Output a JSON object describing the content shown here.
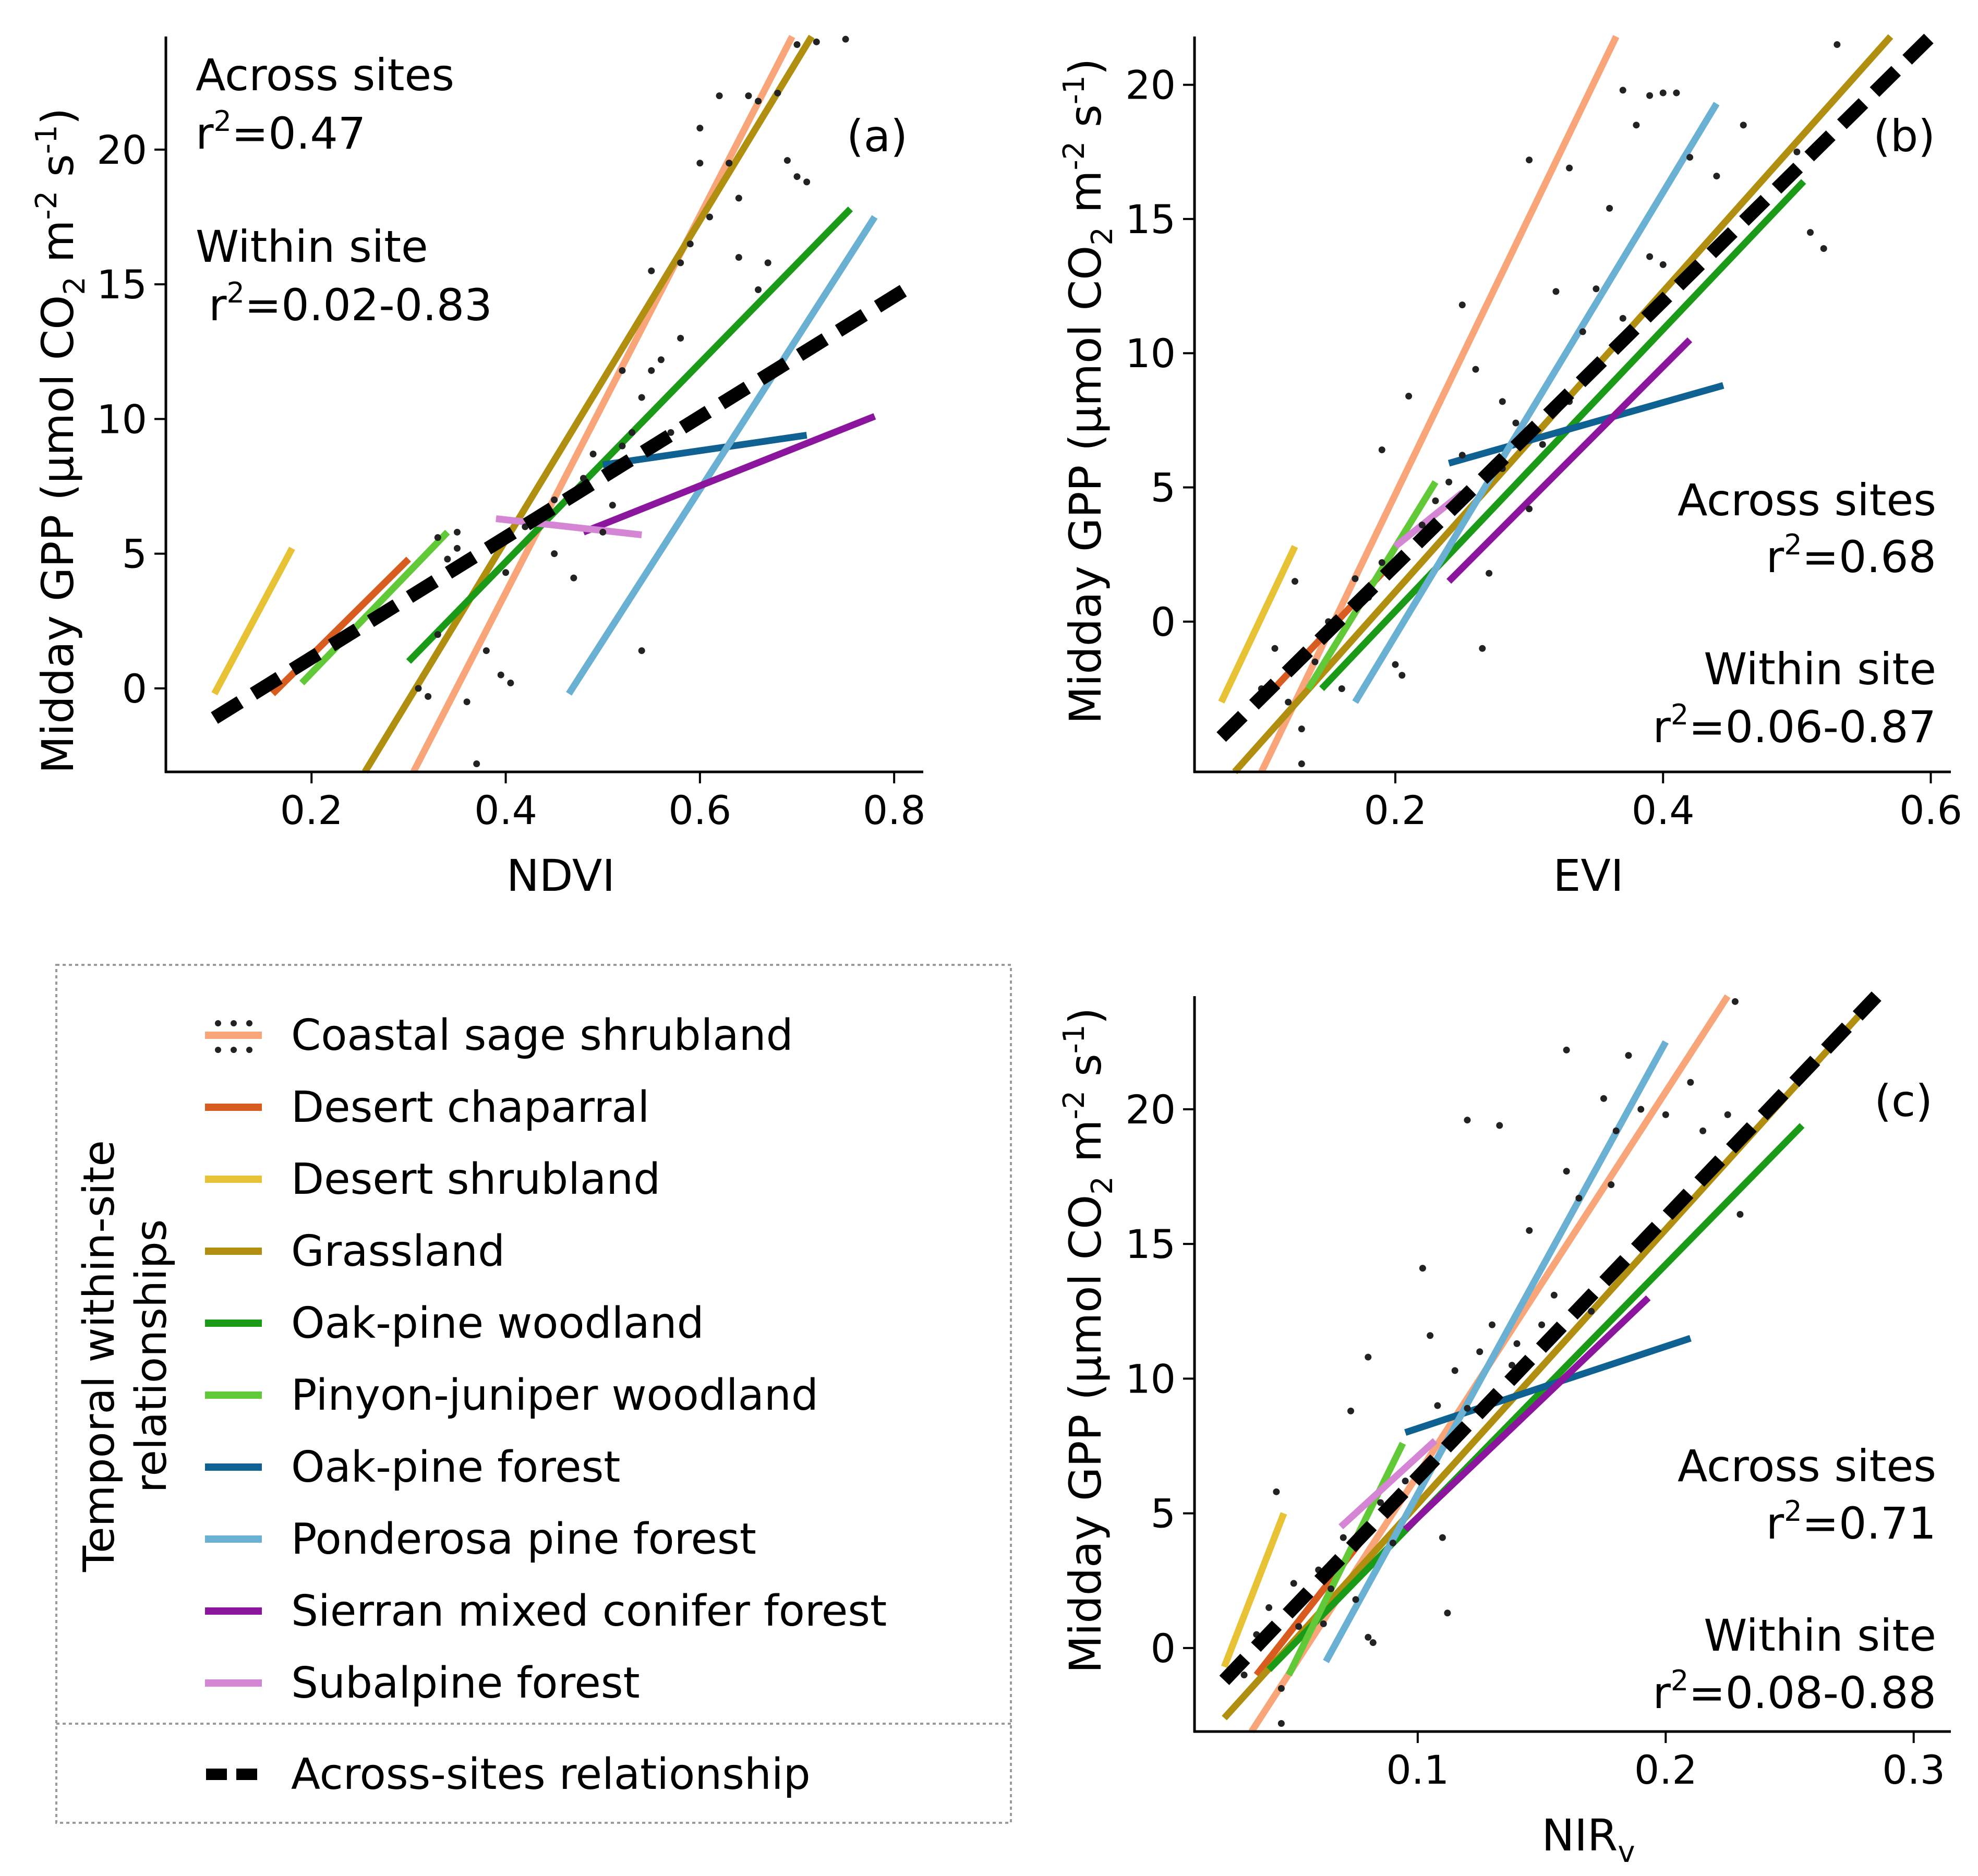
{
  "colors": {
    "background": "#ffffff",
    "points": "#222222",
    "across_sites_line": "#000000",
    "legend_border": "#9a9a9a"
  },
  "chart_data": [
    {
      "id": "a",
      "type": "scatter",
      "panel_label": "(a)",
      "xlabel": "NDVI",
      "ylabel_main": "Midday GPP (µmol CO",
      "ylabel_sub": "2",
      "ylabel_mid": " m",
      "ylabel_sup1": "-2",
      "ylabel_mid2": " s",
      "ylabel_sup2": "-1",
      "ylabel_end": ")",
      "xlim": [
        0.05,
        0.83
      ],
      "ylim": [
        -3.1,
        24.2
      ],
      "xticks": [
        0.2,
        0.4,
        0.6,
        0.8
      ],
      "xtick_labels": [
        "0.2",
        "0.4",
        "0.6",
        "0.8"
      ],
      "yticks": [
        0,
        5,
        10,
        15,
        20
      ],
      "ytick_labels": [
        "0",
        "5",
        "10",
        "15",
        "20"
      ],
      "annotation": {
        "across_title": "Across sites",
        "across_r2_prefix": "r",
        "across_r2_exp": "2",
        "across_r2_value": "=0.47",
        "within_title": "Within site",
        "within_r2_prefix": "r",
        "within_r2_exp": "2",
        "within_r2_value": "=0.02-0.83",
        "placement": "top-left"
      },
      "site_lines": [
        {
          "site": "Coastal sage shrubland",
          "x": [
            0.305,
            0.695
          ],
          "y": [
            -3.1,
            24.2
          ]
        },
        {
          "site": "Desert chaparral",
          "x": [
            0.16,
            0.3
          ],
          "y": [
            -0.2,
            4.8
          ]
        },
        {
          "site": "Desert shrubland",
          "x": [
            0.1,
            0.18
          ],
          "y": [
            -0.2,
            5.2
          ]
        },
        {
          "site": "Grassland",
          "x": [
            0.255,
            0.715
          ],
          "y": [
            -3.1,
            24.2
          ]
        },
        {
          "site": "Oak-pine woodland",
          "x": [
            0.3,
            0.755
          ],
          "y": [
            1.0,
            17.8
          ]
        },
        {
          "site": "Pinyon-juniper woodland",
          "x": [
            0.19,
            0.34
          ],
          "y": [
            0.2,
            5.8
          ]
        },
        {
          "site": "Oak-pine forest",
          "x": [
            0.5,
            0.71
          ],
          "y": [
            8.3,
            9.4
          ]
        },
        {
          "site": "Ponderosa pine forest",
          "x": [
            0.465,
            0.78
          ],
          "y": [
            -0.2,
            17.5
          ]
        },
        {
          "site": "Sierran mixed conifer forest",
          "x": [
            0.48,
            0.78
          ],
          "y": [
            5.8,
            10.1
          ]
        },
        {
          "site": "Subalpine forest",
          "x": [
            0.39,
            0.54
          ],
          "y": [
            6.3,
            5.7
          ]
        }
      ],
      "across_line": {
        "x": [
          0.1,
          0.82
        ],
        "y": [
          -1.1,
          15.0
        ]
      },
      "points": [
        [
          0.31,
          0.0
        ],
        [
          0.32,
          -0.3
        ],
        [
          0.33,
          2.0
        ],
        [
          0.34,
          4.8
        ],
        [
          0.35,
          5.2
        ],
        [
          0.36,
          -0.5
        ],
        [
          0.38,
          1.4
        ],
        [
          0.395,
          0.5
        ],
        [
          0.405,
          0.2
        ],
        [
          0.37,
          -2.8
        ],
        [
          0.33,
          5.6
        ],
        [
          0.35,
          5.8
        ],
        [
          0.4,
          4.3
        ],
        [
          0.42,
          6.0
        ],
        [
          0.44,
          6.5
        ],
        [
          0.45,
          5.0
        ],
        [
          0.45,
          7.0
        ],
        [
          0.47,
          4.1
        ],
        [
          0.48,
          7.8
        ],
        [
          0.49,
          8.7
        ],
        [
          0.5,
          5.8
        ],
        [
          0.51,
          6.8
        ],
        [
          0.52,
          9.0
        ],
        [
          0.53,
          9.5
        ],
        [
          0.52,
          11.8
        ],
        [
          0.54,
          1.4
        ],
        [
          0.54,
          10.8
        ],
        [
          0.55,
          11.8
        ],
        [
          0.55,
          15.5
        ],
        [
          0.56,
          12.2
        ],
        [
          0.57,
          9.5
        ],
        [
          0.58,
          15.8
        ],
        [
          0.58,
          13.0
        ],
        [
          0.59,
          16.5
        ],
        [
          0.6,
          19.5
        ],
        [
          0.6,
          20.8
        ],
        [
          0.61,
          17.5
        ],
        [
          0.62,
          22.0
        ],
        [
          0.63,
          19.5
        ],
        [
          0.63,
          19.5
        ],
        [
          0.64,
          18.2
        ],
        [
          0.64,
          16.0
        ],
        [
          0.65,
          22.0
        ],
        [
          0.66,
          21.8
        ],
        [
          0.66,
          14.8
        ],
        [
          0.67,
          15.8
        ],
        [
          0.68,
          22.1
        ],
        [
          0.69,
          19.6
        ],
        [
          0.7,
          19.0
        ],
        [
          0.71,
          18.8
        ],
        [
          0.7,
          23.9
        ],
        [
          0.72,
          24.0
        ],
        [
          0.75,
          24.1
        ]
      ]
    },
    {
      "id": "b",
      "type": "scatter",
      "panel_label": "(b)",
      "xlabel": "EVI",
      "ylabel_main": "Midday GPP (µmol CO",
      "ylabel_sub": "2",
      "ylabel_mid": " m",
      "ylabel_sup1": "-2",
      "ylabel_mid2": " s",
      "ylabel_sup2": "-1",
      "ylabel_end": ")",
      "xlim": [
        0.05,
        0.615
      ],
      "ylim": [
        -5.6,
        21.8
      ],
      "xticks": [
        0.2,
        0.4,
        0.6
      ],
      "xtick_labels": [
        "0.2",
        "0.4",
        "0.6"
      ],
      "yticks": [
        0,
        5,
        10,
        15,
        20
      ],
      "ytick_labels": [
        "0",
        "5",
        "10",
        "15",
        "20"
      ],
      "annotation": {
        "across_title": "Across sites",
        "across_r2_prefix": "r",
        "across_r2_exp": "2",
        "across_r2_value": "=0.68",
        "within_title": "Within site",
        "within_r2_prefix": "r",
        "within_r2_exp": "2",
        "within_r2_value": "=0.06-0.87",
        "placement": "bottom-right"
      },
      "site_lines": [
        {
          "site": "Coastal sage shrubland",
          "x": [
            0.1,
            0.365
          ],
          "y": [
            -5.6,
            21.8
          ]
        },
        {
          "site": "Desert chaparral",
          "x": [
            0.1,
            0.19
          ],
          "y": [
            -3.0,
            1.8
          ]
        },
        {
          "site": "Desert shrubland",
          "x": [
            0.07,
            0.125
          ],
          "y": [
            -3.0,
            2.8
          ]
        },
        {
          "site": "Grassland",
          "x": [
            0.08,
            0.57
          ],
          "y": [
            -5.6,
            21.8
          ]
        },
        {
          "site": "Oak-pine woodland",
          "x": [
            0.145,
            0.505
          ],
          "y": [
            -2.5,
            16.4
          ]
        },
        {
          "site": "Pinyon-juniper woodland",
          "x": [
            0.135,
            0.23
          ],
          "y": [
            -2.5,
            5.2
          ]
        },
        {
          "site": "Oak-pine forest",
          "x": [
            0.24,
            0.445
          ],
          "y": [
            5.9,
            8.8
          ]
        },
        {
          "site": "Ponderosa pine forest",
          "x": [
            0.17,
            0.44
          ],
          "y": [
            -3.0,
            19.3
          ]
        },
        {
          "site": "Sierran mixed conifer forest",
          "x": [
            0.24,
            0.42
          ],
          "y": [
            1.5,
            10.5
          ]
        },
        {
          "site": "Subalpine forest",
          "x": [
            0.2,
            0.25
          ],
          "y": [
            2.8,
            4.8
          ]
        }
      ],
      "across_line": {
        "x": [
          0.07,
          0.6
        ],
        "y": [
          -4.3,
          21.8
        ]
      },
      "points": [
        [
          0.1,
          -2.5
        ],
        [
          0.11,
          -1.0
        ],
        [
          0.12,
          -3.0
        ],
        [
          0.125,
          1.5
        ],
        [
          0.13,
          -4.0
        ],
        [
          0.13,
          -5.3
        ],
        [
          0.14,
          -1.5
        ],
        [
          0.15,
          0.0
        ],
        [
          0.16,
          -2.5
        ],
        [
          0.17,
          1.6
        ],
        [
          0.18,
          0.9
        ],
        [
          0.19,
          2.2
        ],
        [
          0.19,
          6.4
        ],
        [
          0.2,
          -1.6
        ],
        [
          0.205,
          -2.0
        ],
        [
          0.21,
          8.4
        ],
        [
          0.22,
          3.6
        ],
        [
          0.23,
          4.5
        ],
        [
          0.24,
          5.2
        ],
        [
          0.25,
          6.2
        ],
        [
          0.25,
          11.8
        ],
        [
          0.26,
          9.4
        ],
        [
          0.265,
          -1.0
        ],
        [
          0.27,
          1.8
        ],
        [
          0.28,
          8.2
        ],
        [
          0.28,
          5.7
        ],
        [
          0.29,
          7.4
        ],
        [
          0.3,
          4.2
        ],
        [
          0.3,
          17.2
        ],
        [
          0.31,
          6.6
        ],
        [
          0.32,
          12.3
        ],
        [
          0.33,
          16.9
        ],
        [
          0.33,
          8.2
        ],
        [
          0.34,
          10.8
        ],
        [
          0.35,
          12.4
        ],
        [
          0.36,
          15.4
        ],
        [
          0.37,
          19.8
        ],
        [
          0.37,
          11.3
        ],
        [
          0.38,
          18.5
        ],
        [
          0.39,
          19.6
        ],
        [
          0.4,
          19.7
        ],
        [
          0.39,
          13.6
        ],
        [
          0.4,
          13.3
        ],
        [
          0.41,
          19.7
        ],
        [
          0.42,
          17.3
        ],
        [
          0.44,
          16.6
        ],
        [
          0.46,
          18.5
        ],
        [
          0.5,
          17.5
        ],
        [
          0.51,
          14.5
        ],
        [
          0.52,
          13.9
        ],
        [
          0.53,
          21.5
        ]
      ]
    },
    {
      "id": "c",
      "type": "scatter",
      "panel_label": "(c)",
      "xlabel_main": "NIR",
      "xlabel_sub": "v",
      "ylabel_main": "Midday GPP (µmol CO",
      "ylabel_sub": "2",
      "ylabel_mid": " m",
      "ylabel_sup1": "-2",
      "ylabel_mid2": " s",
      "ylabel_sup2": "-1",
      "ylabel_end": ")",
      "xlim": [
        0.01,
        0.315
      ],
      "ylim": [
        -3.1,
        24.2
      ],
      "xticks": [
        0.1,
        0.2,
        0.3
      ],
      "xtick_labels": [
        "0.1",
        "0.2",
        "0.3"
      ],
      "yticks": [
        0,
        5,
        10,
        15,
        20
      ],
      "ytick_labels": [
        "0",
        "5",
        "10",
        "15",
        "20"
      ],
      "annotation": {
        "across_title": "Across sites",
        "across_r2_prefix": "r",
        "across_r2_exp": "2",
        "across_r2_value": "=0.71",
        "within_title": "Within site",
        "within_r2_prefix": "r",
        "within_r2_exp": "2",
        "within_r2_value": "=0.08-0.88",
        "placement": "bottom-right"
      },
      "site_lines": [
        {
          "site": "Coastal sage shrubland",
          "x": [
            0.033,
            0.225
          ],
          "y": [
            -3.1,
            24.2
          ]
        },
        {
          "site": "Desert chaparral",
          "x": [
            0.035,
            0.08
          ],
          "y": [
            -1.0,
            4.3
          ]
        },
        {
          "site": "Desert shrubland",
          "x": [
            0.022,
            0.046
          ],
          "y": [
            -0.7,
            5.0
          ]
        },
        {
          "site": "Grassland",
          "x": [
            0.022,
            0.285
          ],
          "y": [
            -2.6,
            24.2
          ]
        },
        {
          "site": "Oak-pine woodland",
          "x": [
            0.04,
            0.255
          ],
          "y": [
            -0.8,
            19.4
          ]
        },
        {
          "site": "Pinyon-juniper woodland",
          "x": [
            0.048,
            0.094
          ],
          "y": [
            -1.0,
            7.6
          ]
        },
        {
          "site": "Oak-pine forest",
          "x": [
            0.095,
            0.21
          ],
          "y": [
            8.0,
            11.5
          ]
        },
        {
          "site": "Ponderosa pine forest",
          "x": [
            0.063,
            0.2
          ],
          "y": [
            -0.5,
            22.5
          ]
        },
        {
          "site": "Sierran mixed conifer forest",
          "x": [
            0.095,
            0.193
          ],
          "y": [
            4.4,
            13.0
          ]
        },
        {
          "site": "Subalpine forest",
          "x": [
            0.069,
            0.107
          ],
          "y": [
            4.5,
            7.7
          ]
        }
      ],
      "across_line": {
        "x": [
          0.022,
          0.285
        ],
        "y": [
          -1.2,
          24.2
        ]
      },
      "points": [
        [
          0.03,
          -1.0
        ],
        [
          0.035,
          0.5
        ],
        [
          0.04,
          1.5
        ],
        [
          0.043,
          5.8
        ],
        [
          0.045,
          -1.5
        ],
        [
          0.045,
          -2.8
        ],
        [
          0.05,
          2.4
        ],
        [
          0.052,
          0.8
        ],
        [
          0.06,
          2.9
        ],
        [
          0.062,
          0.9
        ],
        [
          0.065,
          2.2
        ],
        [
          0.07,
          4.1
        ],
        [
          0.073,
          8.8
        ],
        [
          0.075,
          1.8
        ],
        [
          0.08,
          0.4
        ],
        [
          0.08,
          10.8
        ],
        [
          0.082,
          0.2
        ],
        [
          0.085,
          5.4
        ],
        [
          0.09,
          3.9
        ],
        [
          0.095,
          6.2
        ],
        [
          0.1,
          6.4
        ],
        [
          0.102,
          14.1
        ],
        [
          0.105,
          11.6
        ],
        [
          0.108,
          9.0
        ],
        [
          0.11,
          4.1
        ],
        [
          0.112,
          1.3
        ],
        [
          0.115,
          10.3
        ],
        [
          0.12,
          19.6
        ],
        [
          0.12,
          8.9
        ],
        [
          0.125,
          11.0
        ],
        [
          0.13,
          12.0
        ],
        [
          0.133,
          19.4
        ],
        [
          0.138,
          10.5
        ],
        [
          0.14,
          11.3
        ],
        [
          0.145,
          15.5
        ],
        [
          0.15,
          12.0
        ],
        [
          0.155,
          13.1
        ],
        [
          0.16,
          22.2
        ],
        [
          0.16,
          17.7
        ],
        [
          0.165,
          16.7
        ],
        [
          0.17,
          12.5
        ],
        [
          0.175,
          20.4
        ],
        [
          0.178,
          17.2
        ],
        [
          0.18,
          19.2
        ],
        [
          0.185,
          22.0
        ],
        [
          0.19,
          20.0
        ],
        [
          0.2,
          19.8
        ],
        [
          0.21,
          21.0
        ],
        [
          0.215,
          19.2
        ],
        [
          0.225,
          19.8
        ],
        [
          0.228,
          24.0
        ],
        [
          0.23,
          16.1
        ]
      ]
    }
  ],
  "legend": {
    "title_line1": "Temporal within-site",
    "title_line2": "relationships",
    "items": [
      {
        "label": "Coastal sage shrubland",
        "color": "#f9a57a"
      },
      {
        "label": "Desert chaparral",
        "color": "#d85c1f"
      },
      {
        "label": "Desert shrubland",
        "color": "#e6c234"
      },
      {
        "label": "Grassland",
        "color": "#b08e0f"
      },
      {
        "label": "Oak-pine woodland",
        "color": "#1a9a17"
      },
      {
        "label": "Pinyon-juniper woodland",
        "color": "#61c937"
      },
      {
        "label": "Oak-pine forest",
        "color": "#0f6191"
      },
      {
        "label": "Ponderosa pine forest",
        "color": "#6ab0d2"
      },
      {
        "label": "Sierran mixed conifer forest",
        "color": "#8b159d"
      },
      {
        "label": "Subalpine forest",
        "color": "#d485d3"
      }
    ],
    "across_label": "Across-sites relationship"
  }
}
